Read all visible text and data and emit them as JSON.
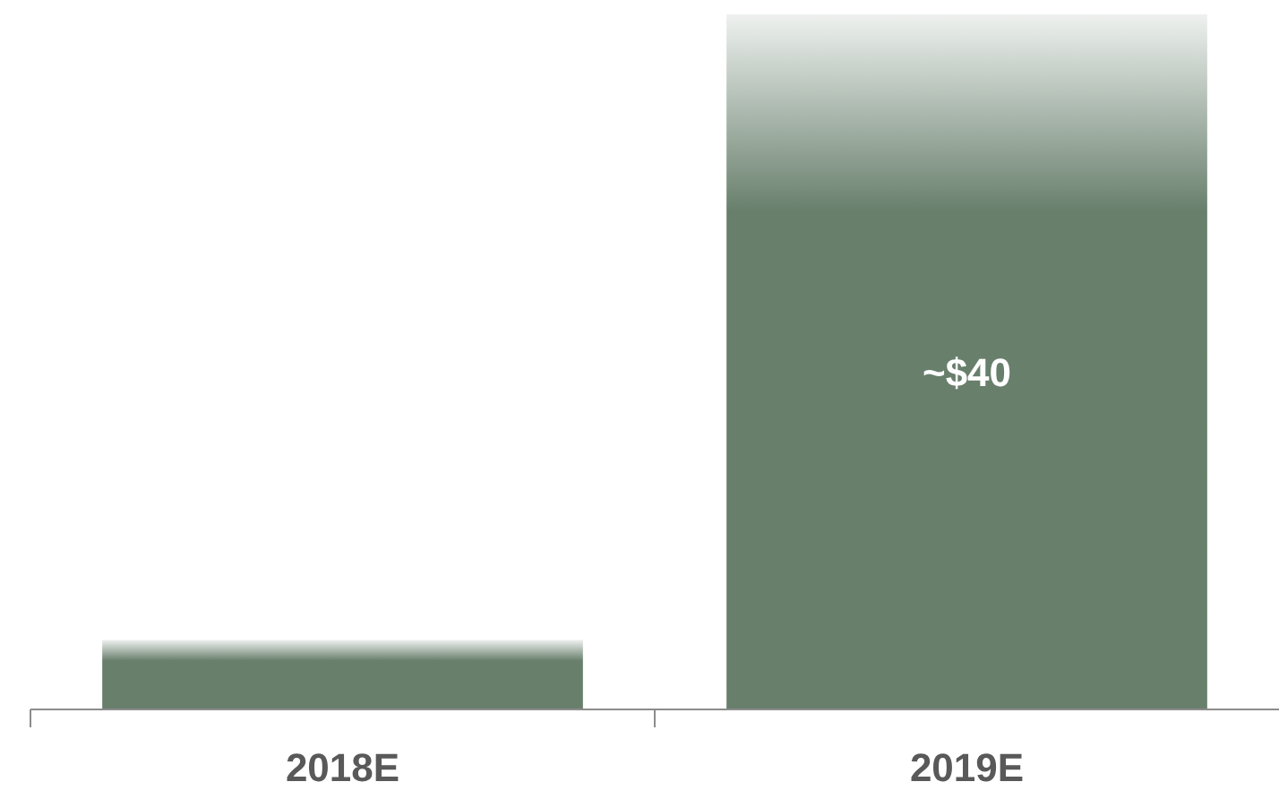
{
  "chart_data": {
    "type": "bar",
    "categories": [
      "2018E",
      "2019E"
    ],
    "values": [
      4,
      40
    ],
    "value_labels": [
      null,
      "~$40"
    ],
    "color": "#687f6c"
  }
}
